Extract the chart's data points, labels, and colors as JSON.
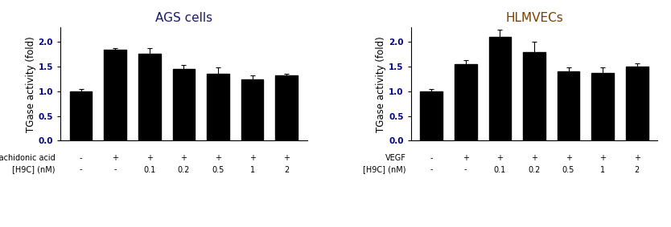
{
  "left_title": "AGS cells",
  "right_title": "HLMVECs",
  "ylabel": "TGase activity (fold)",
  "ylim": [
    0,
    2.3
  ],
  "yticks": [
    0.0,
    0.5,
    1.0,
    1.5,
    2.0
  ],
  "left_values": [
    1.0,
    1.84,
    1.76,
    1.46,
    1.36,
    1.24,
    1.32
  ],
  "left_errors": [
    0.05,
    0.04,
    0.12,
    0.07,
    0.12,
    0.09,
    0.04
  ],
  "left_row1_label": "Arachidonic acid",
  "left_row1": [
    "-",
    "+",
    "+",
    "+",
    "+",
    "+",
    "+"
  ],
  "left_row2_label": "[H9C] (nM)",
  "left_row2": [
    "-",
    "-",
    "0.1",
    "0.2",
    "0.5",
    "1",
    "2"
  ],
  "right_values": [
    1.0,
    1.55,
    2.1,
    1.8,
    1.4,
    1.38,
    1.5
  ],
  "right_errors": [
    0.05,
    0.08,
    0.15,
    0.2,
    0.08,
    0.1,
    0.07
  ],
  "right_row1_label": "VEGF",
  "right_row1": [
    "-",
    "+",
    "+",
    "+",
    "+",
    "+",
    "+"
  ],
  "right_row2_label": "[H9C] (nM)",
  "right_row2": [
    "-",
    "-",
    "0.1",
    "0.2",
    "0.5",
    "1",
    "2"
  ],
  "bar_color": "#000000",
  "bar_width": 0.65,
  "left_title_color": "#1a1a6e",
  "right_title_color": "#7b3f00",
  "ytick_color": "#00008B",
  "row_label_fontsize": 7.0,
  "tick_label_fontsize": 7.5,
  "title_fontsize": 11,
  "ylabel_fontsize": 8.5
}
